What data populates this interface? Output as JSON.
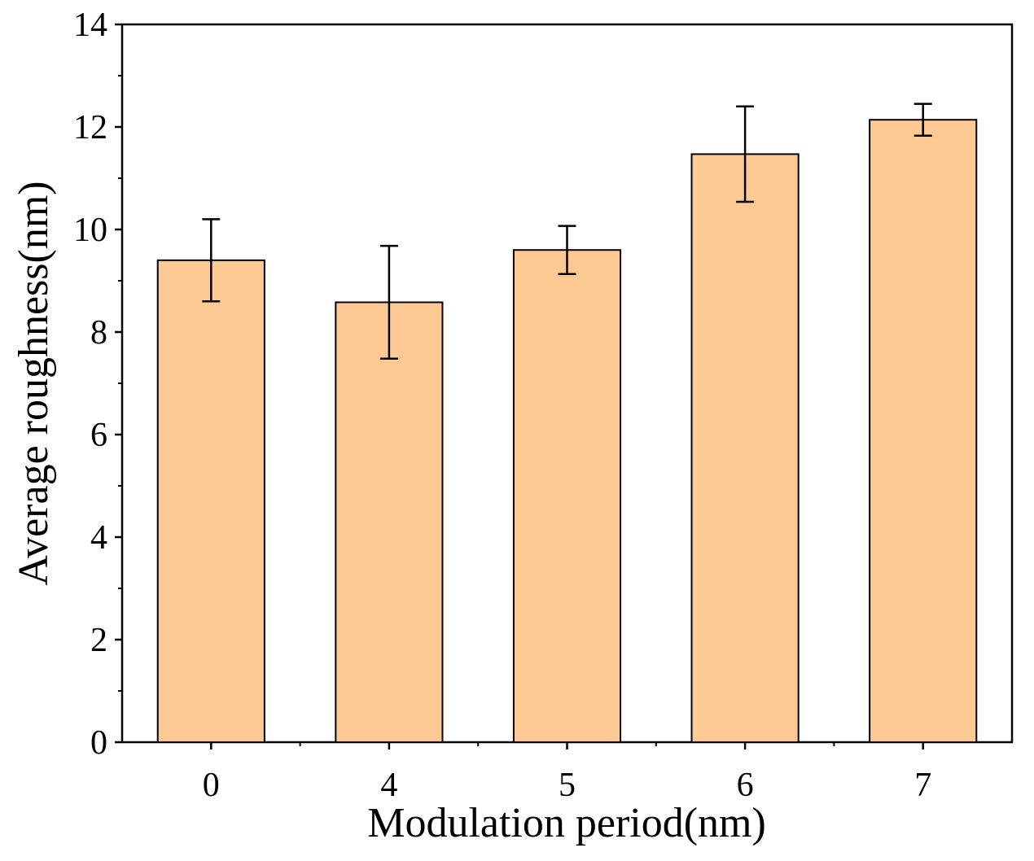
{
  "chart_data": {
    "type": "bar",
    "title": "",
    "xlabel": "Modulation period(nm)",
    "ylabel": "Average roughness(nm)",
    "categories": [
      "0",
      "4",
      "5",
      "6",
      "7"
    ],
    "values": [
      9.4,
      8.58,
      9.6,
      11.47,
      12.14
    ],
    "errors": [
      0.8,
      1.1,
      0.47,
      0.93,
      0.31
    ],
    "ylim": [
      0,
      14
    ],
    "yticks": [
      0,
      2,
      4,
      6,
      8,
      10,
      12,
      14
    ],
    "yticks_labels": [
      "0",
      "2",
      "4",
      "6",
      "8",
      "10",
      "12",
      "14"
    ],
    "bar_color": "#FFC994",
    "edge_color": "#000000",
    "grid": false,
    "legend": "none"
  }
}
